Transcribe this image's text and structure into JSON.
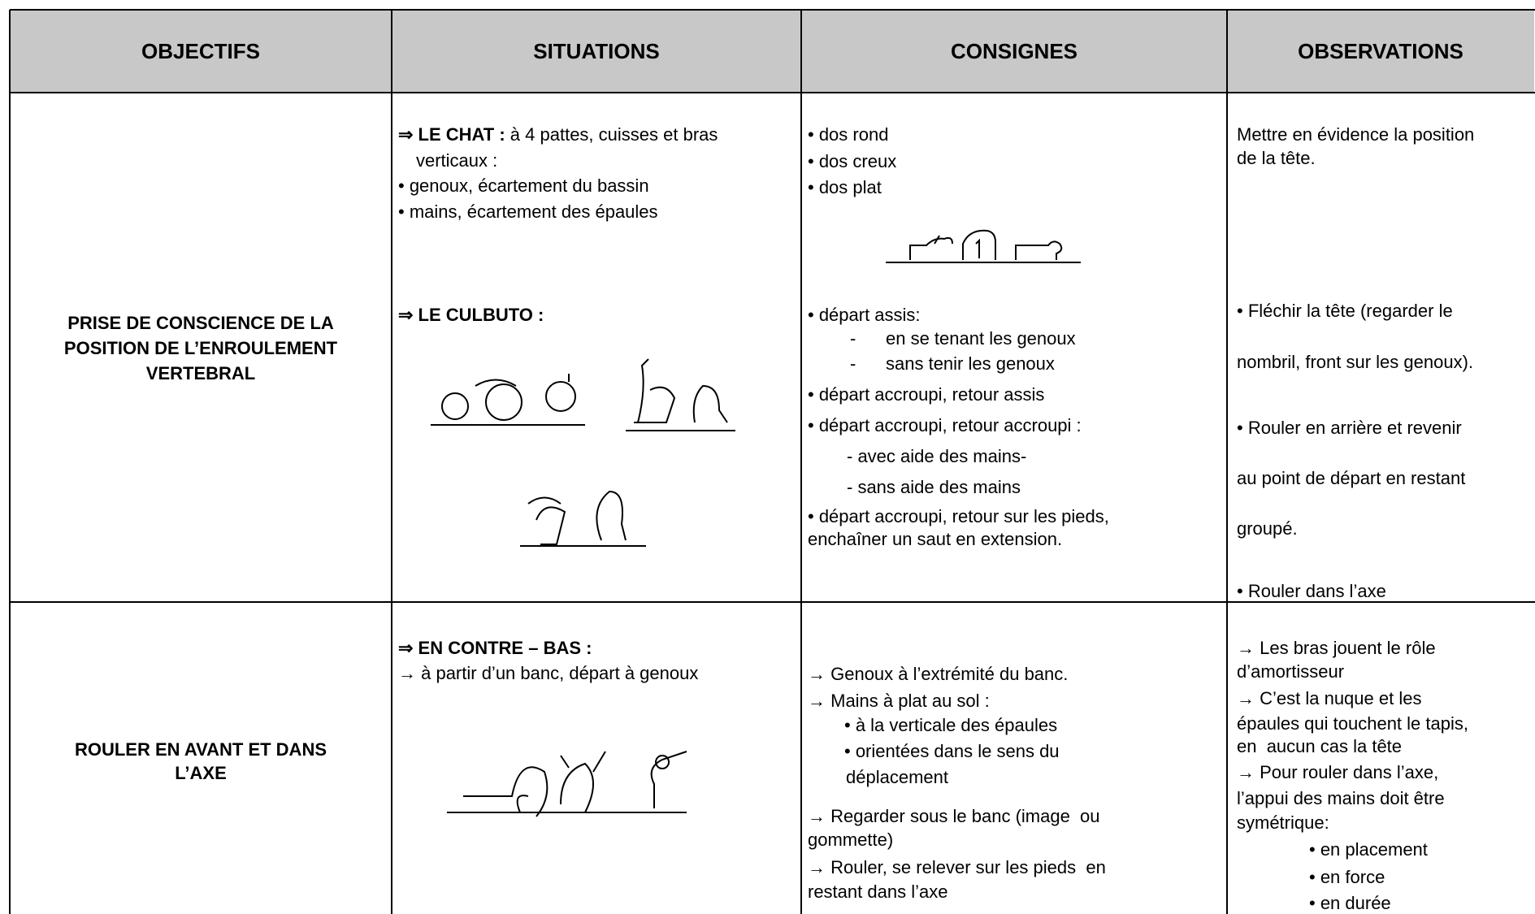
{
  "header": {
    "cells": [
      "OBJECTIFS",
      "SITUATIONS",
      "CONSIGNES",
      "OBSERVATIONS"
    ]
  },
  "rows": [
    {
      "objectif": [
        "PRISE DE CONSCIENCE DE LA",
        "POSITION DE L’ENROULEMENT",
        "VERTEBRAL"
      ],
      "situations": [
        [
          "⇒ LE CHAT :",
          " à 4 pattes, cuisses et bras"
        ],
        "verticaux :",
        "• genoux, écartement du bassin",
        "• mains, écartement des épaules",
        "⇒ LE CULBUTO :"
      ],
      "consignes": [
        "• dos rond",
        "• dos creux",
        "• dos plat",
        "• départ assis:",
        "-      en se tenant les genoux",
        "-      sans tenir les genoux",
        "• départ accroupi, retour assis",
        "• départ accroupi, retour accroupi :",
        "- avec aide des mains-",
        "- sans aide des mains",
        "• départ accroupi, retour sur les pieds,",
        "enchaîner un saut en extension."
      ],
      "observations": [
        "Mettre en évidence la position",
        "de la tête.",
        "• Fléchir la tête (regarder le",
        "nombril, front sur les genoux).",
        "• Rouler en arrière et revenir",
        "au point de départ en restant",
        "groupé.",
        "• Rouler dans l’axe"
      ]
    },
    {
      "objectif": [
        "ROULER EN AVANT ET DANS",
        "L’AXE"
      ],
      "situations": [
        "⇒ EN CONTRE – BAS :",
        "→ à partir d’un banc, départ à genoux"
      ],
      "consignes": [
        "→ Genoux à l’extrémité du banc.",
        "→ Mains à plat au sol :",
        "• à la verticale des épaules",
        "• orientées dans le sens du",
        "déplacement",
        "→ Regarder sous le banc (image  ou",
        "gommette)",
        "→ Rouler, se relever sur les pieds  en",
        "restant dans l’axe"
      ],
      "observations": [
        "→ Les bras jouent le rôle",
        "d’amortisseur",
        "→ C’est la nuque et les",
        "épaules qui touchent le tapis,",
        "en  aucun cas la tête",
        "→ Pour rouler dans l’axe,",
        "l’appui des mains doit être",
        "symétrique:",
        "• en placement",
        "• en force",
        "• en durée"
      ]
    }
  ]
}
